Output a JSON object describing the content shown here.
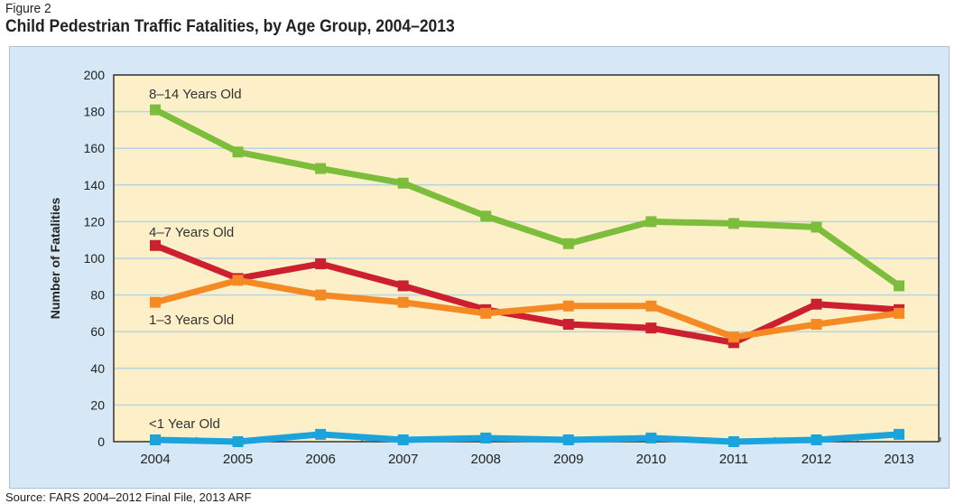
{
  "figure_label": "Figure 2",
  "title": "Child Pedestrian Traffic Fatalities, by Age Group, 2004–2013",
  "source": "Source: FARS 2004–2012 Final File, 2013 ARF",
  "chart_data": {
    "type": "line",
    "title": "Child Pedestrian Traffic Fatalities, by Age Group, 2004–2013",
    "xlabel": "",
    "ylabel": "Number of Fatalities",
    "ylim": [
      0,
      200
    ],
    "yticks": [
      0,
      20,
      40,
      60,
      80,
      100,
      120,
      140,
      160,
      180,
      200
    ],
    "grid": true,
    "background_color": "#fdf0c8",
    "panel_color": "#d6e8f6",
    "x": [
      "2004",
      "2005",
      "2006",
      "2007",
      "2008",
      "2009",
      "2010",
      "2011",
      "2012",
      "2013"
    ],
    "series": [
      {
        "name": "8–14 Years Old",
        "color": "#7cbd3c",
        "values": [
          181,
          158,
          149,
          141,
          123,
          108,
          120,
          119,
          117,
          85
        ]
      },
      {
        "name": "4–7 Years Old",
        "color": "#cc1f2f",
        "values": [
          107,
          89,
          97,
          85,
          72,
          64,
          62,
          54,
          75,
          72
        ]
      },
      {
        "name": "1–3 Years Old",
        "color": "#f58a25",
        "values": [
          76,
          88,
          80,
          76,
          70,
          74,
          74,
          57,
          64,
          70
        ]
      },
      {
        "name": "<1 Year Old",
        "color": "#1aa3dc",
        "values": [
          1,
          0,
          4,
          1,
          2,
          1,
          2,
          0,
          1,
          4
        ]
      }
    ]
  }
}
